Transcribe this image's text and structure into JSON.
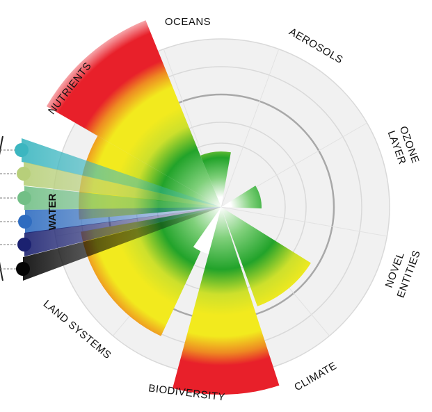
{
  "labels": {
    "oceans": "OCEANS",
    "aerosols": "AEROSOLS",
    "ozone_line1": "OZONE",
    "ozone_line2": "LAYER",
    "novel_line1": "NOVEL",
    "novel_line2": "ENTITIES",
    "climate": "CLIMATE",
    "biodiversity": "BIODIVERSITY",
    "land": "LAND SYSTEMS",
    "nutrients": "NUTRIENTS",
    "water": "WATER"
  },
  "colors": {
    "safe": "#22a32a",
    "uncertainty": "#f2ea1e",
    "high_risk": "#e8202a",
    "ring_bg": "#f1f1f1",
    "ring_line": "#d9d9d9",
    "boundary_line": "#a8a8a8"
  },
  "water_dots": [
    {
      "name": "water-dot-1",
      "color": "#3cb6c0"
    },
    {
      "name": "water-dot-2",
      "color": "#b7cf7a"
    },
    {
      "name": "water-dot-3",
      "color": "#72bf86"
    },
    {
      "name": "water-dot-4",
      "color": "#2e6cc0"
    },
    {
      "name": "water-dot-5",
      "color": "#1b2170"
    },
    {
      "name": "water-dot-6",
      "color": "#050505"
    }
  ]
}
